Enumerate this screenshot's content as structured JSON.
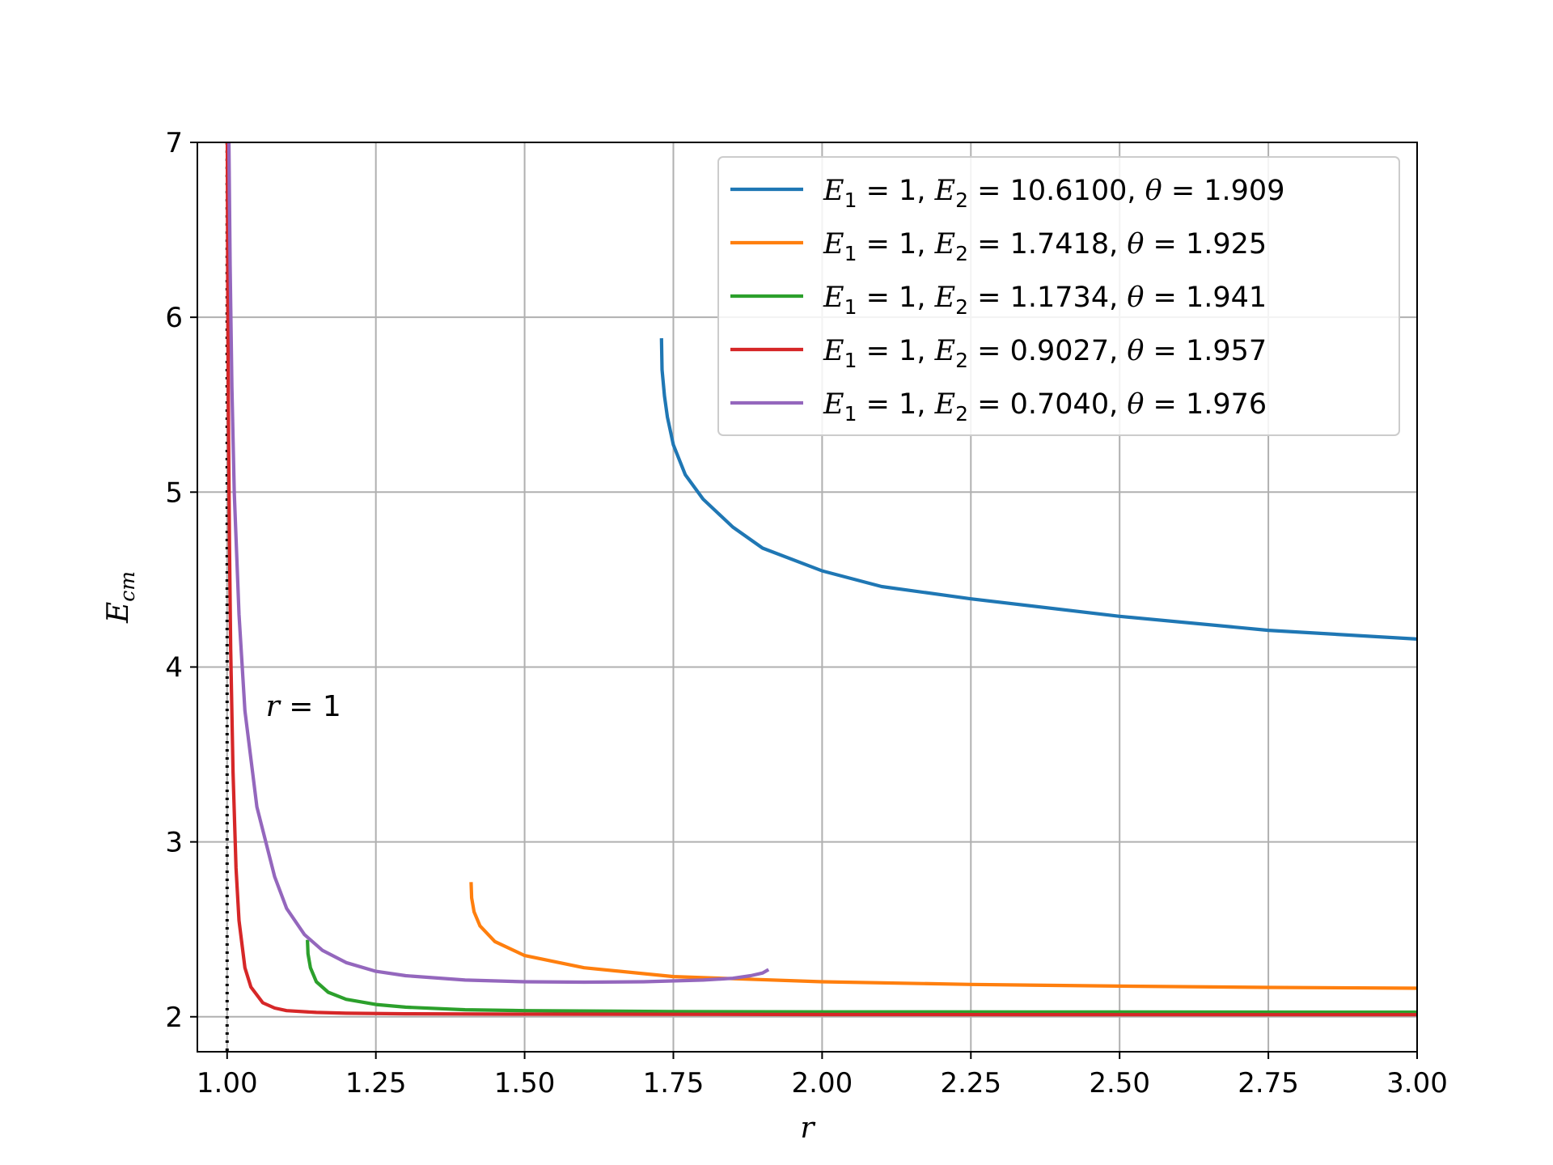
{
  "chart_data": {
    "type": "line",
    "title": "",
    "xlabel": "r",
    "ylabel_main": "E",
    "ylabel_sub": "cm",
    "xlim": [
      0.95,
      3.0
    ],
    "ylim": [
      1.8,
      7.0
    ],
    "xticks": [
      1.0,
      1.25,
      1.5,
      1.75,
      2.0,
      2.25,
      2.5,
      2.75,
      3.0
    ],
    "xtick_labels": [
      "1.00",
      "1.25",
      "1.50",
      "1.75",
      "2.00",
      "2.25",
      "2.50",
      "2.75",
      "3.00"
    ],
    "yticks": [
      2,
      3,
      4,
      5,
      6,
      7
    ],
    "ytick_labels": [
      "2",
      "3",
      "4",
      "5",
      "6",
      "7"
    ],
    "grid": true,
    "legend_position": "top-right",
    "vline": {
      "x": 1.0,
      "style": "dotted",
      "color": "#000000"
    },
    "annotation": {
      "text": "r = 1",
      "x": 1.065,
      "y": 3.72
    },
    "series": [
      {
        "label_parts": [
          "E",
          "1",
          " = 1, ",
          "E",
          "2",
          " = 10.6100, ",
          "θ",
          " = 1.909"
        ],
        "color": "#1f77b4",
        "x": [
          1.73,
          1.731,
          1.735,
          1.74,
          1.75,
          1.77,
          1.8,
          1.85,
          1.9,
          2.0,
          2.1,
          2.25,
          2.5,
          2.75,
          3.0
        ],
        "y": [
          5.88,
          5.7,
          5.55,
          5.43,
          5.27,
          5.1,
          4.96,
          4.8,
          4.68,
          4.55,
          4.46,
          4.39,
          4.29,
          4.21,
          4.16
        ]
      },
      {
        "label_parts": [
          "E",
          "1",
          " = 1, ",
          "E",
          "2",
          " = 1.7418, ",
          "θ",
          " = 1.925"
        ],
        "color": "#ff7f0e",
        "x": [
          1.41,
          1.411,
          1.415,
          1.425,
          1.45,
          1.5,
          1.6,
          1.75,
          2.0,
          2.25,
          2.5,
          2.75,
          3.0
        ],
        "y": [
          2.77,
          2.68,
          2.6,
          2.52,
          2.43,
          2.35,
          2.28,
          2.23,
          2.2,
          2.185,
          2.175,
          2.168,
          2.163
        ]
      },
      {
        "label_parts": [
          "E",
          "1",
          " = 1, ",
          "E",
          "2",
          " = 1.1734, ",
          "θ",
          " = 1.941"
        ],
        "color": "#2ca02c",
        "x": [
          1.135,
          1.136,
          1.14,
          1.15,
          1.17,
          1.2,
          1.25,
          1.3,
          1.4,
          1.5,
          1.75,
          2.0,
          2.5,
          3.0
        ],
        "y": [
          2.44,
          2.36,
          2.28,
          2.2,
          2.14,
          2.1,
          2.07,
          2.055,
          2.04,
          2.035,
          2.03,
          2.028,
          2.027,
          2.026
        ]
      },
      {
        "label_parts": [
          "E",
          "1",
          " = 1, ",
          "E",
          "2",
          " = 0.9027, ",
          "θ",
          " = 1.957"
        ],
        "color": "#d62728",
        "x": [
          1.0003,
          1.001,
          1.002,
          1.004,
          1.006,
          1.01,
          1.015,
          1.02,
          1.03,
          1.04,
          1.06,
          1.08,
          1.1,
          1.15,
          1.2,
          1.3,
          1.5,
          2.0,
          2.5,
          3.0
        ],
        "y": [
          7.0,
          6.2,
          5.5,
          4.7,
          4.1,
          3.4,
          2.85,
          2.55,
          2.28,
          2.17,
          2.08,
          2.05,
          2.035,
          2.025,
          2.02,
          2.017,
          2.015,
          2.013,
          2.012,
          2.012
        ]
      },
      {
        "label_parts": [
          "E",
          "1",
          " = 1, ",
          "E",
          "2",
          " = 0.7040, ",
          "θ",
          " = 1.976"
        ],
        "color": "#9467bd",
        "x": [
          1.003,
          1.005,
          1.008,
          1.012,
          1.02,
          1.03,
          1.05,
          1.08,
          1.1,
          1.13,
          1.16,
          1.2,
          1.25,
          1.3,
          1.4,
          1.5,
          1.6,
          1.7,
          1.8,
          1.85,
          1.88,
          1.9,
          1.91
        ],
        "y": [
          7.0,
          6.3,
          5.6,
          5.0,
          4.3,
          3.75,
          3.2,
          2.8,
          2.62,
          2.47,
          2.38,
          2.31,
          2.26,
          2.235,
          2.21,
          2.2,
          2.198,
          2.2,
          2.21,
          2.22,
          2.235,
          2.25,
          2.27
        ]
      }
    ]
  }
}
